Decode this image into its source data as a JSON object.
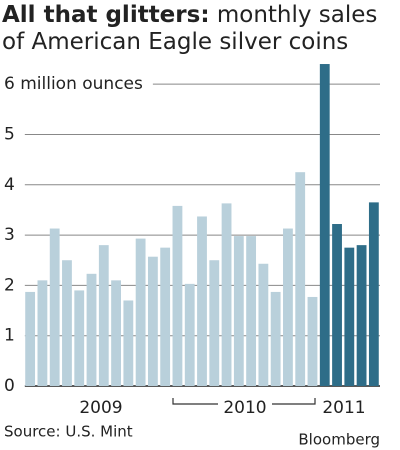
{
  "chart_data": {
    "type": "bar",
    "title_bold": "All that glitters:",
    "title": "monthly sales of American Eagle silver coins",
    "categories": [
      null,
      null,
      null,
      null,
      null,
      null,
      null,
      null,
      null,
      null,
      null,
      null,
      null,
      null,
      null,
      null,
      null,
      null,
      null,
      null,
      null,
      null,
      null,
      null,
      null,
      null,
      null,
      null,
      null
    ],
    "values": [
      1.87,
      2.1,
      3.13,
      2.5,
      1.9,
      2.23,
      2.8,
      2.1,
      1.7,
      2.93,
      2.57,
      2.75,
      3.58,
      2.03,
      3.37,
      2.5,
      3.63,
      2.98,
      2.98,
      2.43,
      1.87,
      3.13,
      4.25,
      1.77,
      6.4,
      3.22,
      2.75,
      2.8,
      3.65
    ],
    "colors": [
      "#b9d0db",
      "#b9d0db",
      "#b9d0db",
      "#b9d0db",
      "#b9d0db",
      "#b9d0db",
      "#b9d0db",
      "#b9d0db",
      "#b9d0db",
      "#b9d0db",
      "#b9d0db",
      "#b9d0db",
      "#b9d0db",
      "#b9d0db",
      "#b9d0db",
      "#b9d0db",
      "#b9d0db",
      "#b9d0db",
      "#b9d0db",
      "#b9d0db",
      "#b9d0db",
      "#b9d0db",
      "#b9d0db",
      "#b9d0db",
      "#2e6d88",
      "#2e6d88",
      "#2e6d88",
      "#2e6d88",
      "#2e6d88"
    ],
    "year_labels": [
      "2009",
      "2010",
      "2011"
    ],
    "ylim": [
      0,
      6.5
    ],
    "yticks": [
      0,
      1,
      2,
      3,
      4,
      5,
      {
        "value": 6,
        "label": "6 million ounces"
      }
    ],
    "grid": true,
    "source": "Source: U.S. Mint",
    "credit": "Bloomberg"
  }
}
